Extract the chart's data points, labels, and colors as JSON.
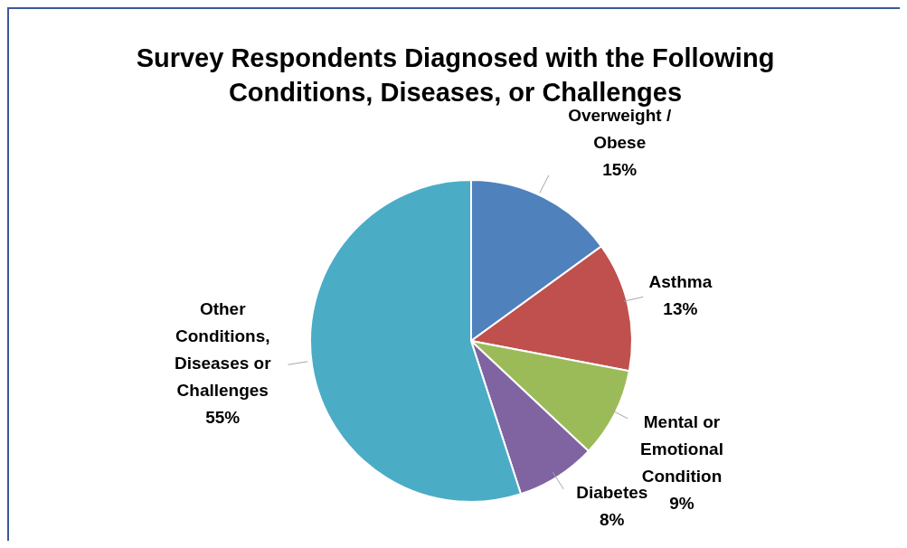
{
  "chart_data": {
    "type": "pie",
    "title": "Survey Respondents Diagnosed with the Following Conditions, Diseases, or Challenges",
    "categories": [
      "Overweight / Obese",
      "Asthma",
      "Mental or Emotional Condition",
      "Diabetes",
      "Other Conditions, Diseases or Challenges"
    ],
    "values": [
      15,
      13,
      9,
      8,
      55
    ],
    "colors": [
      "#4f81bd",
      "#c0504d",
      "#9bbb59",
      "#8064a2",
      "#4bacc6"
    ],
    "value_labels": [
      "15%",
      "13%",
      "9%",
      "8%",
      "55%"
    ]
  }
}
